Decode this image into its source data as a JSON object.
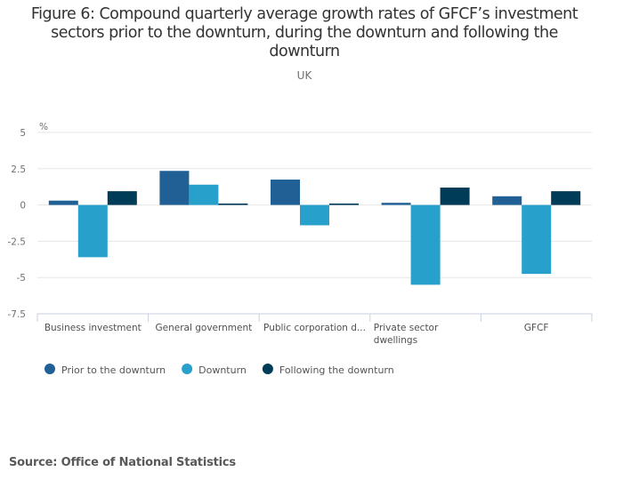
{
  "chart_data": {
    "type": "bar",
    "title": "Figure 6: Compound quarterly average growth rates of GFCF’s investment sectors prior to the downturn, during the downturn and following the downturn",
    "title_lines": [
      "Figure 6: Compound quarterly average growth rates of GFCF’s investment",
      "sectors prior to the downturn, during the downturn and following the",
      "downturn"
    ],
    "subtitle": "UK",
    "xlabel": "",
    "ylabel": "%",
    "ylim": [
      -7.5,
      5
    ],
    "yticks": [
      5,
      2.5,
      0,
      -2.5,
      -5,
      -7.5
    ],
    "ytick_labels": [
      "5",
      "2.5",
      "0",
      "-2.5",
      "-5",
      "-7.5"
    ],
    "grid": true,
    "legend_position": "bottom-left",
    "categories": [
      "Business investment",
      "General government",
      "Public corporation d...",
      "Private sector dwellings",
      "GFCF"
    ],
    "category_label_lines": [
      [
        "Business investment"
      ],
      [
        "General government"
      ],
      [
        "Public corporation d..."
      ],
      [
        "Private sector",
        "dwellings"
      ],
      [
        "GFCF"
      ]
    ],
    "series": [
      {
        "name": "Prior to the downturn",
        "color": "#206095",
        "values": [
          0.3,
          2.35,
          1.75,
          0.15,
          0.6
        ]
      },
      {
        "name": "Downturn",
        "color": "#27a0cc",
        "values": [
          -3.6,
          1.4,
          -1.4,
          -5.5,
          -4.75
        ]
      },
      {
        "name": "Following the downturn",
        "color": "#003c57",
        "values": [
          0.95,
          0.1,
          0.1,
          1.2,
          0.95
        ]
      }
    ]
  },
  "source": "Source: Office of National Statistics"
}
